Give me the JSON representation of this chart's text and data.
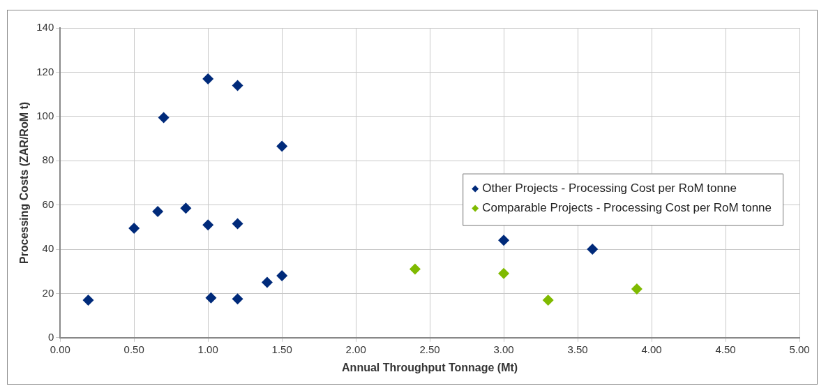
{
  "chart_data": {
    "type": "scatter",
    "xlabel": "Annual Throughput Tonnage (Mt)",
    "ylabel": "Processing Costs (ZAR/RoM t)",
    "series": [
      {
        "name": "Other Projects - Processing Cost per RoM tonne",
        "color": "#002a7a",
        "x": [
          0.19,
          0.5,
          0.66,
          0.7,
          0.85,
          1.0,
          1.0,
          1.02,
          1.2,
          1.2,
          1.2,
          1.4,
          1.5,
          1.5,
          3.0,
          3.6
        ],
        "values": [
          17,
          49.5,
          57,
          99.5,
          58.5,
          117,
          51,
          18,
          114,
          51.5,
          17.5,
          25,
          28,
          86.5,
          44,
          40
        ]
      },
      {
        "name": "Comparable Projects - Processing Cost per RoM tonne",
        "color": "#7fba00",
        "x": [
          2.4,
          3.0,
          3.3,
          3.9
        ],
        "values": [
          31,
          29,
          17,
          22
        ]
      }
    ],
    "xlim": [
      0,
      5
    ],
    "xticks": [
      {
        "value": 0,
        "label": "0.00"
      },
      {
        "value": 0.5,
        "label": "0.50"
      },
      {
        "value": 1,
        "label": "1.00"
      },
      {
        "value": 1.5,
        "label": "1.50"
      },
      {
        "value": 2,
        "label": "2.00"
      },
      {
        "value": 2.5,
        "label": "2.50"
      },
      {
        "value": 3,
        "label": "3.00"
      },
      {
        "value": 3.5,
        "label": "3.50"
      },
      {
        "value": 4,
        "label": "4.00"
      },
      {
        "value": 4.5,
        "label": "4.50"
      },
      {
        "value": 5,
        "label": "5.00"
      }
    ],
    "ylim": [
      0,
      140
    ],
    "yticks": [
      0,
      20,
      40,
      60,
      80,
      100,
      120,
      140
    ],
    "grid": true,
    "legend": "right",
    "marker": "diamond"
  }
}
